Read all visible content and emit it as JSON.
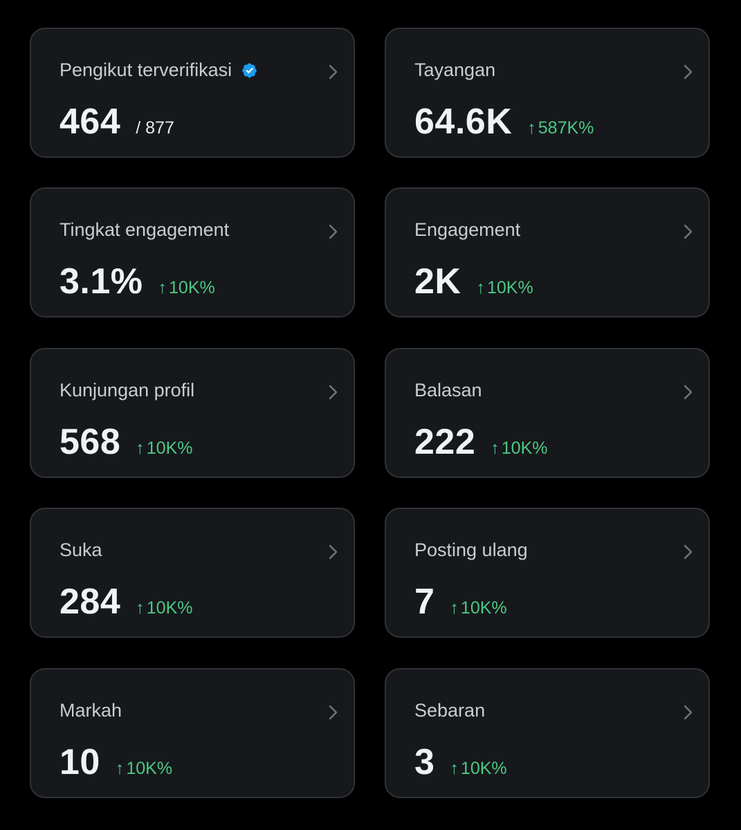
{
  "colors": {
    "background": "#000000",
    "card": "#16181c",
    "border": "#2f3336",
    "positive": "#4cc982",
    "verified": "#1d9bf0"
  },
  "cards": {
    "verified_followers": {
      "title": "Pengikut terverifikasi",
      "value": "464",
      "total": "/ 877",
      "badge_icon": "verified-badge-icon"
    },
    "impressions": {
      "title": "Tayangan",
      "value": "64.6K",
      "arrow": "↑",
      "change": "587K%"
    },
    "engagement_rate": {
      "title": "Tingkat engagement",
      "value": "3.1%",
      "arrow": "↑",
      "change": "10K%"
    },
    "engagements": {
      "title": "Engagement",
      "value": "2K",
      "arrow": "↑",
      "change": "10K%"
    },
    "profile_visits": {
      "title": "Kunjungan profil",
      "value": "568",
      "arrow": "↑",
      "change": "10K%"
    },
    "replies": {
      "title": "Balasan",
      "value": "222",
      "arrow": "↑",
      "change": "10K%"
    },
    "likes": {
      "title": "Suka",
      "value": "284",
      "arrow": "↑",
      "change": "10K%"
    },
    "reposts": {
      "title": "Posting ulang",
      "value": "7",
      "arrow": "↑",
      "change": "10K%"
    },
    "bookmarks": {
      "title": "Markah",
      "value": "10",
      "arrow": "↑",
      "change": "10K%"
    },
    "shares": {
      "title": "Sebaran",
      "value": "3",
      "arrow": "↑",
      "change": "10K%"
    }
  }
}
